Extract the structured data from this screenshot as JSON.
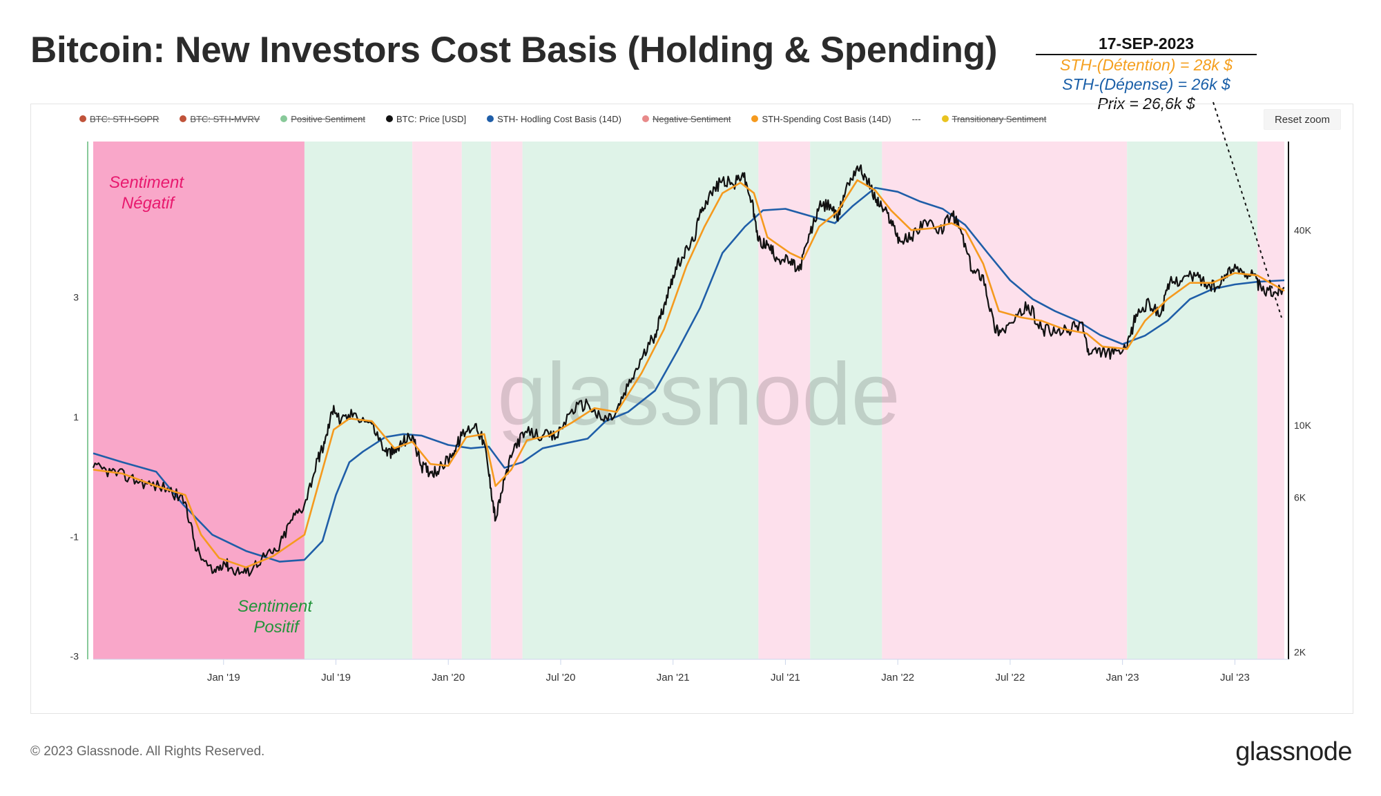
{
  "header": {
    "title": "Bitcoin: New Investors Cost Basis (Holding & Spending)"
  },
  "annotation": {
    "date": "17-SEP-2023",
    "holding": "STH-(Détention) = 28k $",
    "spending": "STH-(Dépense) = 26k $",
    "price": "Prix = 26,6k $"
  },
  "toolbar": {
    "reset_zoom": "Reset zoom"
  },
  "legend": [
    {
      "label": "BTC: STH-SOPR",
      "color": "#c0533a",
      "enabled": false
    },
    {
      "label": "BTC: STH-MVRV",
      "color": "#c0533a",
      "enabled": false
    },
    {
      "label": "Positive Sentiment",
      "color": "#88c999",
      "enabled": false
    },
    {
      "label": "BTC: Price [USD]",
      "color": "#111111",
      "enabled": true
    },
    {
      "label": "STH- Hodling Cost Basis (14D)",
      "color": "#1f5ea8",
      "enabled": true
    },
    {
      "label": "Negative Sentiment",
      "color": "#e88a8a",
      "enabled": false
    },
    {
      "label": "STH-Spending Cost Basis (14D)",
      "color": "#f59a1e",
      "enabled": true
    },
    {
      "label": "---",
      "color": "",
      "enabled": true
    },
    {
      "label": "Transitionary Sentiment",
      "color": "#e9c320",
      "enabled": false
    }
  ],
  "overlays": {
    "negative": "Sentiment\nNégatif",
    "positive": "Sentiment\nPositif",
    "watermark": "glassnode"
  },
  "footer": {
    "copyright": "© 2023 Glassnode. All Rights Reserved.",
    "brand": "glassnode"
  },
  "colors": {
    "price": "#111111",
    "hodling": "#1f5ea8",
    "spending": "#f59a1e",
    "negative_dark": "#f9a7c9",
    "negative_light": "#fde0ec",
    "positive": "#dff3e8"
  },
  "chart_data": {
    "type": "line",
    "x_ticks": [
      "Jan '19",
      "Jul '19",
      "Jan '20",
      "Jul '20",
      "Jan '21",
      "Jul '21",
      "Jan '22",
      "Jul '22",
      "Jan '23",
      "Jul '23"
    ],
    "x_range": [
      2018.42,
      2023.72
    ],
    "left_axis": {
      "ticks": [
        "3",
        "1",
        "-1",
        "-3"
      ],
      "range": [
        -3.05,
        5.6
      ]
    },
    "right_axis": {
      "ticks": [
        "40K",
        "10K",
        "6K",
        "2K"
      ],
      "scale": "log",
      "range": [
        1900,
        75000
      ]
    },
    "sentiment_bands": [
      {
        "from": 2018.42,
        "to": 2019.36,
        "kind": "negative_dark"
      },
      {
        "from": 2019.36,
        "to": 2019.84,
        "kind": "positive"
      },
      {
        "from": 2019.84,
        "to": 2020.06,
        "kind": "negative"
      },
      {
        "from": 2020.06,
        "to": 2020.19,
        "kind": "positive"
      },
      {
        "from": 2020.19,
        "to": 2020.33,
        "kind": "negative"
      },
      {
        "from": 2020.33,
        "to": 2021.38,
        "kind": "positive"
      },
      {
        "from": 2021.38,
        "to": 2021.61,
        "kind": "negative"
      },
      {
        "from": 2021.61,
        "to": 2021.93,
        "kind": "positive"
      },
      {
        "from": 2021.93,
        "to": 2023.02,
        "kind": "negative"
      },
      {
        "from": 2023.02,
        "to": 2023.6,
        "kind": "positive"
      },
      {
        "from": 2023.6,
        "to": 2023.72,
        "kind": "negative"
      }
    ],
    "series": [
      {
        "name": "BTC: Price [USD]",
        "points": [
          [
            2018.42,
            7400
          ],
          [
            2018.5,
            7200
          ],
          [
            2018.58,
            6900
          ],
          [
            2018.66,
            6600
          ],
          [
            2018.75,
            6400
          ],
          [
            2018.83,
            5800
          ],
          [
            2018.88,
            4100
          ],
          [
            2018.95,
            3500
          ],
          [
            2019.0,
            3800
          ],
          [
            2019.04,
            3600
          ],
          [
            2019.1,
            3500
          ],
          [
            2019.17,
            3900
          ],
          [
            2019.24,
            4100
          ],
          [
            2019.3,
            5100
          ],
          [
            2019.36,
            5700
          ],
          [
            2019.42,
            7900
          ],
          [
            2019.45,
            8800
          ],
          [
            2019.49,
            11500
          ],
          [
            2019.52,
            10200
          ],
          [
            2019.58,
            10900
          ],
          [
            2019.66,
            10100
          ],
          [
            2019.72,
            8300
          ],
          [
            2019.76,
            8200
          ],
          [
            2019.8,
            8900
          ],
          [
            2019.84,
            9300
          ],
          [
            2019.88,
            7500
          ],
          [
            2019.92,
            7200
          ],
          [
            2019.96,
            7300
          ],
          [
            2020.02,
            8200
          ],
          [
            2020.06,
            9300
          ],
          [
            2020.12,
            10100
          ],
          [
            2020.16,
            8800
          ],
          [
            2020.19,
            6400
          ],
          [
            2020.21,
            5100
          ],
          [
            2020.25,
            6800
          ],
          [
            2020.3,
            8800
          ],
          [
            2020.35,
            9500
          ],
          [
            2020.42,
            9300
          ],
          [
            2020.48,
            9200
          ],
          [
            2020.55,
            11200
          ],
          [
            2020.62,
            11700
          ],
          [
            2020.68,
            10400
          ],
          [
            2020.74,
            10700
          ],
          [
            2020.8,
            13200
          ],
          [
            2020.86,
            16000
          ],
          [
            2020.92,
            19100
          ],
          [
            2020.96,
            23500
          ],
          [
            2021.0,
            29000
          ],
          [
            2021.04,
            33000
          ],
          [
            2021.09,
            37000
          ],
          [
            2021.13,
            47000
          ],
          [
            2021.17,
            52000
          ],
          [
            2021.22,
            57000
          ],
          [
            2021.27,
            55000
          ],
          [
            2021.31,
            60000
          ],
          [
            2021.35,
            49000
          ],
          [
            2021.38,
            37000
          ],
          [
            2021.42,
            36000
          ],
          [
            2021.46,
            33000
          ],
          [
            2021.52,
            32000
          ],
          [
            2021.56,
            30000
          ],
          [
            2021.61,
            39000
          ],
          [
            2021.65,
            47000
          ],
          [
            2021.7,
            48000
          ],
          [
            2021.73,
            43000
          ],
          [
            2021.77,
            54000
          ],
          [
            2021.82,
            63000
          ],
          [
            2021.86,
            58000
          ],
          [
            2021.9,
            50000
          ],
          [
            2021.93,
            47000
          ],
          [
            2021.97,
            43000
          ],
          [
            2022.01,
            37000
          ],
          [
            2022.06,
            38000
          ],
          [
            2022.12,
            43000
          ],
          [
            2022.18,
            39000
          ],
          [
            2022.24,
            45000
          ],
          [
            2022.28,
            40000
          ],
          [
            2022.33,
            30000
          ],
          [
            2022.38,
            29000
          ],
          [
            2022.43,
            20000
          ],
          [
            2022.46,
            19500
          ],
          [
            2022.52,
            21000
          ],
          [
            2022.58,
            23500
          ],
          [
            2022.64,
            19800
          ],
          [
            2022.7,
            19300
          ],
          [
            2022.76,
            19600
          ],
          [
            2022.82,
            20800
          ],
          [
            2022.85,
            16500
          ],
          [
            2022.91,
            16900
          ],
          [
            2022.96,
            16600
          ],
          [
            2023.02,
            17200
          ],
          [
            2023.06,
            22000
          ],
          [
            2023.12,
            23800
          ],
          [
            2023.17,
            22000
          ],
          [
            2023.21,
            27500
          ],
          [
            2023.27,
            28500
          ],
          [
            2023.33,
            29000
          ],
          [
            2023.38,
            27000
          ],
          [
            2023.43,
            26500
          ],
          [
            2023.47,
            30300
          ],
          [
            2023.53,
            30000
          ],
          [
            2023.58,
            29300
          ],
          [
            2023.62,
            26000
          ],
          [
            2023.68,
            25800
          ],
          [
            2023.72,
            26600
          ]
        ]
      },
      {
        "name": "STH-Spending Cost Basis (14D)",
        "points": [
          [
            2018.42,
            7300
          ],
          [
            2018.55,
            7100
          ],
          [
            2018.7,
            6500
          ],
          [
            2018.83,
            6100
          ],
          [
            2018.9,
            4600
          ],
          [
            2018.98,
            3900
          ],
          [
            2019.1,
            3650
          ],
          [
            2019.22,
            3950
          ],
          [
            2019.36,
            4600
          ],
          [
            2019.42,
            6500
          ],
          [
            2019.49,
            9700
          ],
          [
            2019.56,
            10500
          ],
          [
            2019.66,
            10300
          ],
          [
            2019.76,
            8500
          ],
          [
            2019.84,
            8900
          ],
          [
            2019.92,
            7600
          ],
          [
            2020.0,
            7500
          ],
          [
            2020.08,
            9200
          ],
          [
            2020.16,
            9400
          ],
          [
            2020.21,
            6500
          ],
          [
            2020.28,
            7300
          ],
          [
            2020.35,
            9000
          ],
          [
            2020.45,
            9300
          ],
          [
            2020.55,
            10200
          ],
          [
            2020.65,
            11300
          ],
          [
            2020.75,
            11000
          ],
          [
            2020.86,
            14500
          ],
          [
            2020.96,
            19800
          ],
          [
            2021.06,
            31000
          ],
          [
            2021.14,
            41000
          ],
          [
            2021.22,
            52000
          ],
          [
            2021.3,
            56000
          ],
          [
            2021.36,
            52000
          ],
          [
            2021.42,
            38000
          ],
          [
            2021.52,
            34000
          ],
          [
            2021.58,
            32500
          ],
          [
            2021.65,
            41000
          ],
          [
            2021.73,
            45500
          ],
          [
            2021.82,
            57000
          ],
          [
            2021.9,
            53000
          ],
          [
            2021.97,
            46000
          ],
          [
            2022.06,
            40000
          ],
          [
            2022.15,
            40500
          ],
          [
            2022.24,
            42000
          ],
          [
            2022.3,
            40000
          ],
          [
            2022.38,
            31500
          ],
          [
            2022.45,
            22500
          ],
          [
            2022.55,
            21500
          ],
          [
            2022.64,
            21000
          ],
          [
            2022.74,
            19800
          ],
          [
            2022.84,
            19200
          ],
          [
            2022.91,
            17500
          ],
          [
            2023.02,
            17200
          ],
          [
            2023.1,
            21000
          ],
          [
            2023.2,
            24500
          ],
          [
            2023.3,
            27500
          ],
          [
            2023.4,
            27500
          ],
          [
            2023.5,
            29500
          ],
          [
            2023.6,
            29000
          ],
          [
            2023.72,
            26000
          ]
        ]
      },
      {
        "name": "STH- Hodling Cost Basis (14D)",
        "points": [
          [
            2018.42,
            8200
          ],
          [
            2018.55,
            7700
          ],
          [
            2018.7,
            7200
          ],
          [
            2018.82,
            5700
          ],
          [
            2018.95,
            4600
          ],
          [
            2019.1,
            4100
          ],
          [
            2019.25,
            3800
          ],
          [
            2019.36,
            3850
          ],
          [
            2019.44,
            4400
          ],
          [
            2019.5,
            6100
          ],
          [
            2019.56,
            7700
          ],
          [
            2019.62,
            8300
          ],
          [
            2019.72,
            9200
          ],
          [
            2019.8,
            9400
          ],
          [
            2019.88,
            9300
          ],
          [
            2020.0,
            8700
          ],
          [
            2020.1,
            8500
          ],
          [
            2020.18,
            8600
          ],
          [
            2020.25,
            7400
          ],
          [
            2020.33,
            7700
          ],
          [
            2020.42,
            8500
          ],
          [
            2020.52,
            8800
          ],
          [
            2020.62,
            9100
          ],
          [
            2020.7,
            10300
          ],
          [
            2020.8,
            11000
          ],
          [
            2020.92,
            12800
          ],
          [
            2021.02,
            17000
          ],
          [
            2021.12,
            23000
          ],
          [
            2021.22,
            34000
          ],
          [
            2021.32,
            41000
          ],
          [
            2021.4,
            46000
          ],
          [
            2021.5,
            46500
          ],
          [
            2021.62,
            44000
          ],
          [
            2021.72,
            42000
          ],
          [
            2021.8,
            47500
          ],
          [
            2021.9,
            54000
          ],
          [
            2022.0,
            52500
          ],
          [
            2022.1,
            49000
          ],
          [
            2022.2,
            46500
          ],
          [
            2022.3,
            41500
          ],
          [
            2022.4,
            34000
          ],
          [
            2022.5,
            28000
          ],
          [
            2022.6,
            24500
          ],
          [
            2022.7,
            22500
          ],
          [
            2022.8,
            21000
          ],
          [
            2022.9,
            19000
          ],
          [
            2023.0,
            17800
          ],
          [
            2023.1,
            18900
          ],
          [
            2023.2,
            21000
          ],
          [
            2023.3,
            24500
          ],
          [
            2023.4,
            26300
          ],
          [
            2023.5,
            27200
          ],
          [
            2023.6,
            27700
          ],
          [
            2023.72,
            28000
          ]
        ]
      }
    ]
  }
}
